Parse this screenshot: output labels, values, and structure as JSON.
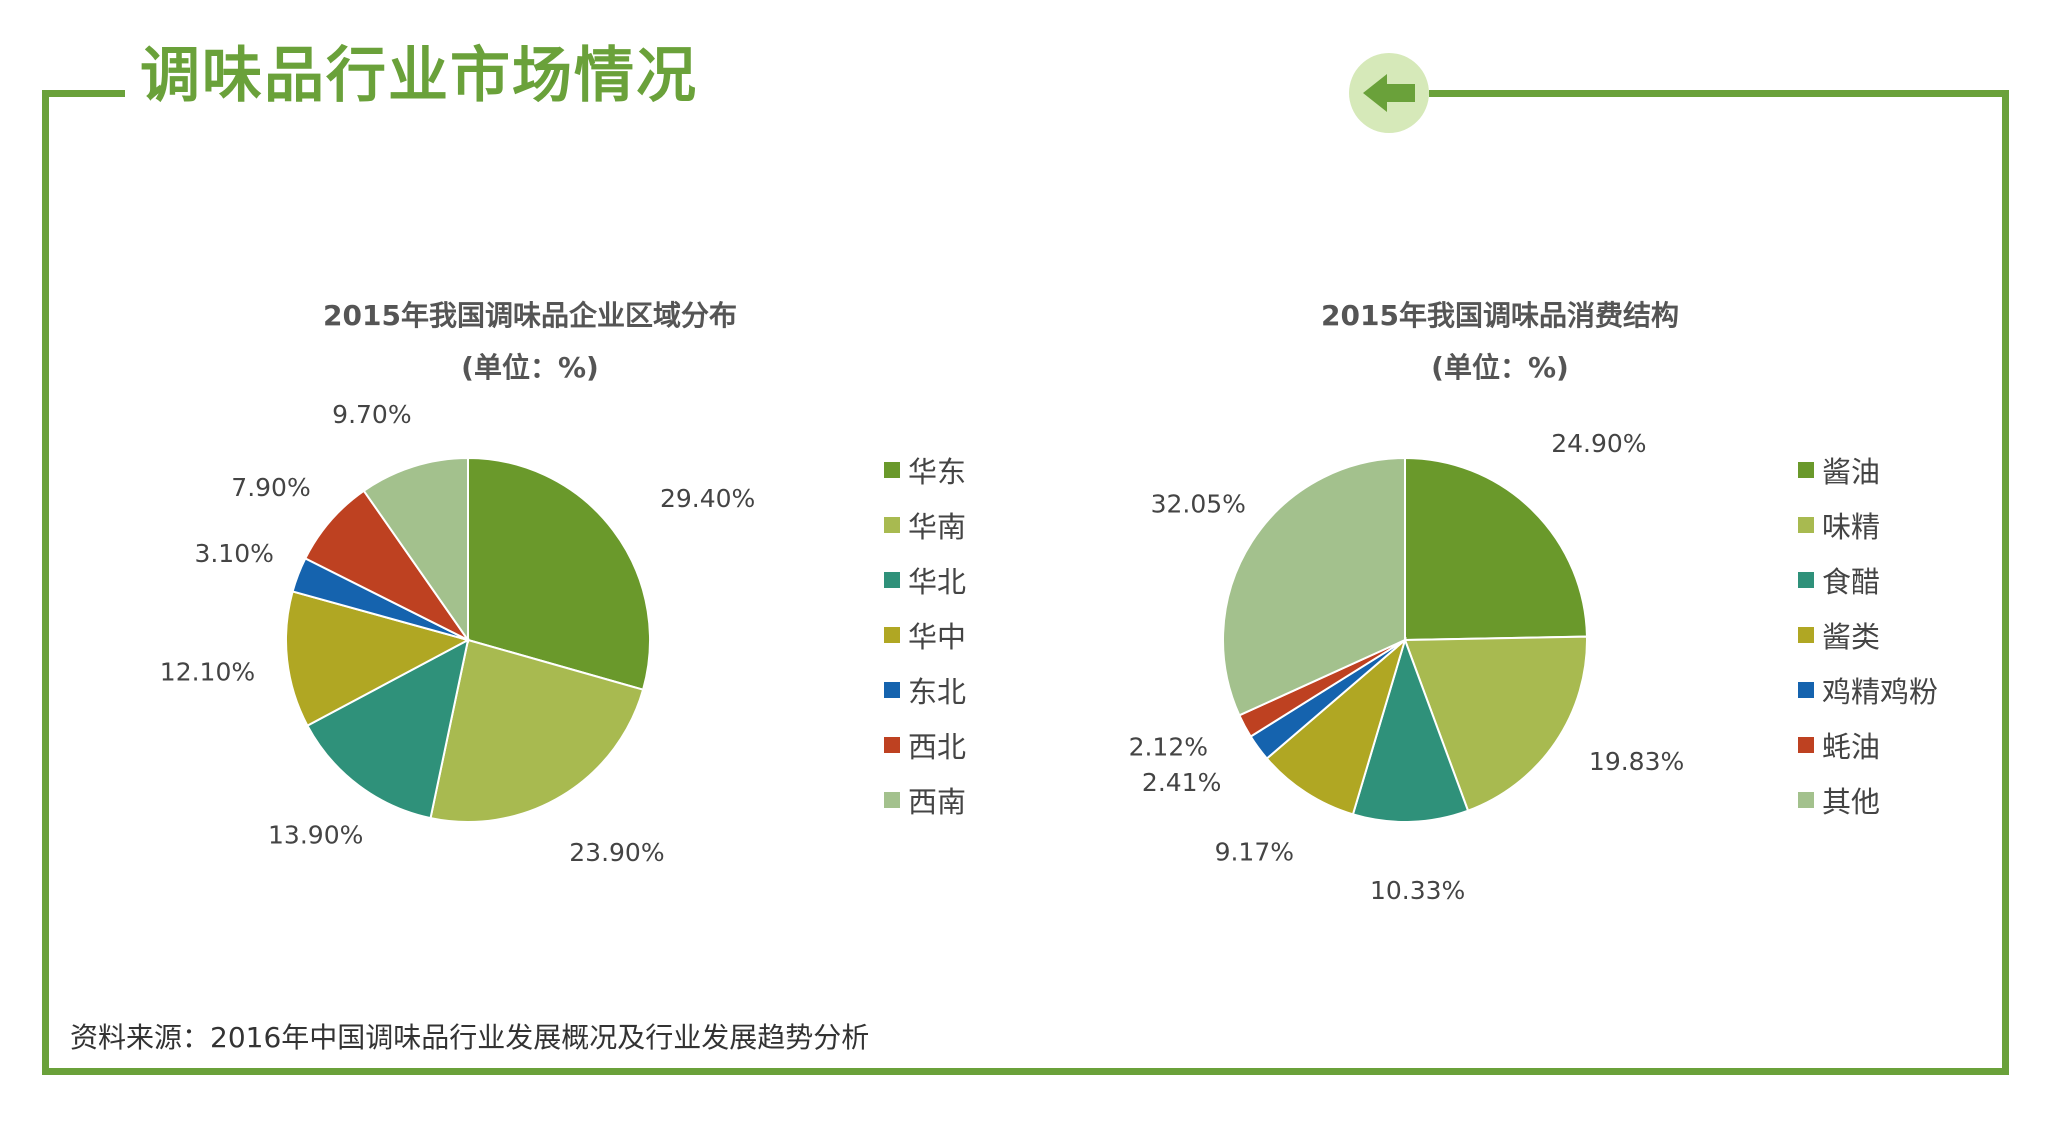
{
  "header": {
    "title": "调味品行业市场情况"
  },
  "colors": {
    "frame": "#6aa13a",
    "back_button_bg": "#d6e9b9",
    "back_arrow": "#6aa13a"
  },
  "footer": {
    "source": "资料来源：2016年中国调味品行业发展概况及行业发展趋势分析"
  },
  "chart_data": [
    {
      "type": "pie",
      "title": "2015年我国调味品企业区域分布",
      "subtitle": "(单位：%)",
      "categories": [
        "华东",
        "华南",
        "华北",
        "华中",
        "东北",
        "西北",
        "西南"
      ],
      "values": [
        29.4,
        23.9,
        13.9,
        12.1,
        3.1,
        7.9,
        9.7
      ],
      "labels": [
        "29.40%",
        "23.90%",
        "13.90%",
        "12.10%",
        "3.10%",
        "7.90%",
        "9.70%"
      ],
      "colors": [
        "#6a992b",
        "#a8ba50",
        "#2f917a",
        "#b0a723",
        "#1563ae",
        "#be4121",
        "#a3c18d"
      ],
      "legend_position": "right"
    },
    {
      "type": "pie",
      "title": "2015年我国调味品消费结构",
      "subtitle": "(单位：%)",
      "categories": [
        "酱油",
        "味精",
        "食醋",
        "酱类",
        "鸡精鸡粉",
        "蚝油",
        "其他"
      ],
      "values": [
        24.9,
        19.83,
        10.33,
        9.17,
        2.41,
        2.12,
        32.05
      ],
      "labels": [
        "24.90%",
        "19.83%",
        "10.33%",
        "9.17%",
        "2.41%",
        "2.12%",
        "32.05%"
      ],
      "colors": [
        "#6a992b",
        "#a8ba50",
        "#2f917a",
        "#b0a723",
        "#1563ae",
        "#be4121",
        "#a3c18d"
      ],
      "legend_position": "right"
    }
  ]
}
